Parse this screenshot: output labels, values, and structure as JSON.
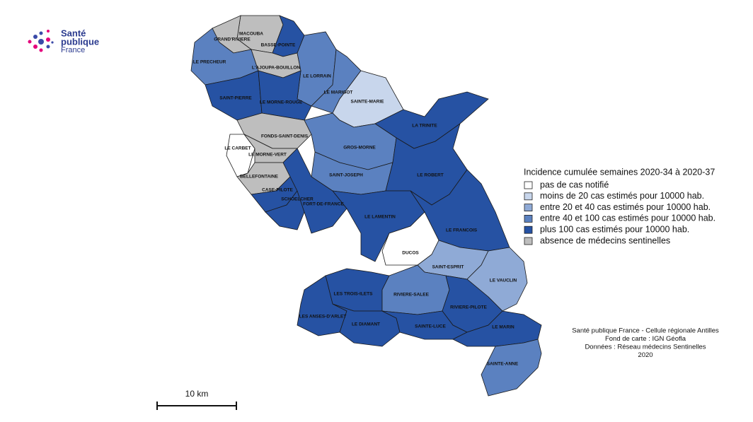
{
  "logo": {
    "line1": "Santé",
    "line2": "publique",
    "line3": "France"
  },
  "legend": {
    "title": "Incidence cumulée semaines 2020-34 à 2020-37",
    "items": [
      {
        "label": "pas de cas notifié",
        "color": "#ffffff"
      },
      {
        "label": "moins de 20 cas estimés pour 10000 hab.",
        "color": "#c8d6ec"
      },
      {
        "label": "entre 20 et 40 cas estimés pour 10000 hab.",
        "color": "#8faad6"
      },
      {
        "label": "entre 40 et 100 cas estimés pour 10000 hab.",
        "color": "#5b81c0"
      },
      {
        "label": "plus 100 cas estimés pour 10000 hab.",
        "color": "#2652a3"
      },
      {
        "label": "absence de médecins sentinelles",
        "color": "#bebebe"
      }
    ]
  },
  "communes": [
    {
      "label": "MACOUBA",
      "color": "#bebebe"
    },
    {
      "label": "GRAND'RIVIERE",
      "color": "#bebebe"
    },
    {
      "label": "BASSE-POINTE",
      "color": "#2652a3"
    },
    {
      "label": "LE PRECHEUR",
      "color": "#5b81c0"
    },
    {
      "label": "L'AJOUPA-BOUILLON",
      "color": "#bebebe"
    },
    {
      "label": "LE LORRAIN",
      "color": "#5b81c0"
    },
    {
      "label": "LE MARIGOT",
      "color": "#5b81c0"
    },
    {
      "label": "SAINT-PIERRE",
      "color": "#2652a3"
    },
    {
      "label": "LE MORNE-ROUGE",
      "color": "#2652a3"
    },
    {
      "label": "SAINTE-MARIE",
      "color": "#c8d6ec"
    },
    {
      "label": "LA TRINITE",
      "color": "#2652a3"
    },
    {
      "label": "FONDS-SAINT-DENIS",
      "color": "#bebebe"
    },
    {
      "label": "LE CARBET",
      "color": "#ffffff"
    },
    {
      "label": "LE MORNE-VERT",
      "color": "#bebebe"
    },
    {
      "label": "GROS-MORNE",
      "color": "#5b81c0"
    },
    {
      "label": "SAINT-JOSEPH",
      "color": "#5b81c0"
    },
    {
      "label": "LE ROBERT",
      "color": "#2652a3"
    },
    {
      "label": "BELLEFONTAINE",
      "color": "#bebebe"
    },
    {
      "label": "CASE-PILOTE",
      "color": "#2652a3"
    },
    {
      "label": "SCHOELCHER",
      "color": "#2652a3"
    },
    {
      "label": "FORT-DE-FRANCE",
      "color": "#2652a3"
    },
    {
      "label": "LE LAMENTIN",
      "color": "#2652a3"
    },
    {
      "label": "LE FRANCOIS",
      "color": "#2652a3"
    },
    {
      "label": "DUCOS",
      "color": "#ffffff"
    },
    {
      "label": "SAINT-ESPRIT",
      "color": "#8faad6"
    },
    {
      "label": "LE VAUCLIN",
      "color": "#8faad6"
    },
    {
      "label": "LES TROIS-ILETS",
      "color": "#2652a3"
    },
    {
      "label": "RIVIERE-SALEE",
      "color": "#5b81c0"
    },
    {
      "label": "RIVIERE-PILOTE",
      "color": "#2652a3"
    },
    {
      "label": "LES ANSES-D'ARLET",
      "color": "#2652a3"
    },
    {
      "label": "LE DIAMANT",
      "color": "#2652a3"
    },
    {
      "label": "SAINTE-LUCE",
      "color": "#2652a3"
    },
    {
      "label": "LE MARIN",
      "color": "#2652a3"
    },
    {
      "label": "SAINTE-ANNE",
      "color": "#5b81c0"
    }
  ],
  "credits": [
    "Santé publique France - Cellule régionale Antilles",
    "Fond de carte : IGN Géofla",
    "Données : Réseau médecins Sentinelles",
    "2020"
  ],
  "scale": {
    "label": "10 km"
  }
}
